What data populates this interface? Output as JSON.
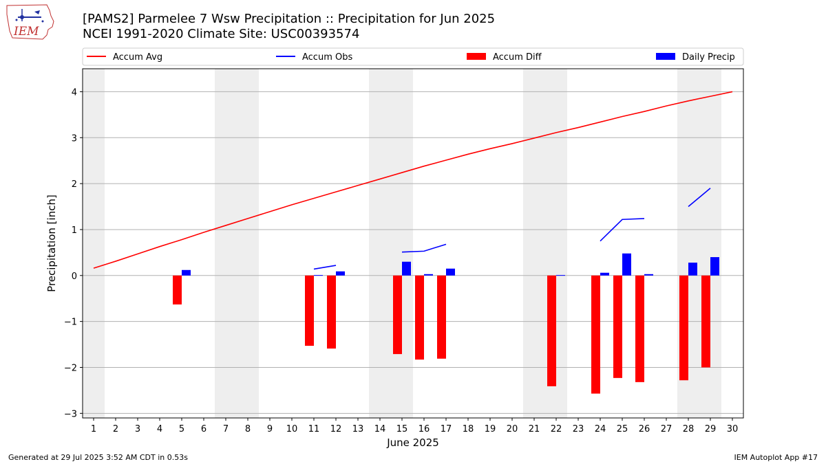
{
  "header": {
    "title": "[PAMS2] Parmelee 7 Wsw Precipitation :: Precipitation for Jun 2025",
    "subtitle": "NCEI 1991-2020 Climate Site: USC00393574",
    "logo_text": "IEM"
  },
  "footer": {
    "generated": "Generated at 29 Jul 2025 3:52 AM CDT in 0.53s",
    "app": "IEM Autoplot App #17"
  },
  "colors": {
    "avg": "#ff0000",
    "obs": "#0000ff",
    "diff": "#ff0000",
    "daily": "#0000ff",
    "weekend": "#eeeeee",
    "grid": "#b0b0b0"
  },
  "chart_data": {
    "type": "bar",
    "xlabel": "June 2025",
    "ylabel": "Precipitation [inch]",
    "xlim": [
      0.5,
      30.5
    ],
    "ylim": [
      -3.1,
      4.5
    ],
    "yticks": [
      -3,
      -2,
      -1,
      0,
      1,
      2,
      3,
      4
    ],
    "ytick_labels": [
      "−3",
      "−2",
      "−1",
      "0",
      "1",
      "2",
      "3",
      "4"
    ],
    "days": [
      1,
      2,
      3,
      4,
      5,
      6,
      7,
      8,
      9,
      10,
      11,
      12,
      13,
      14,
      15,
      16,
      17,
      18,
      19,
      20,
      21,
      22,
      23,
      24,
      25,
      26,
      27,
      28,
      29,
      30
    ],
    "weekend_days": [
      1,
      7,
      8,
      14,
      15,
      21,
      22,
      28,
      29
    ],
    "grid": true,
    "legend_position": "top",
    "legend": [
      {
        "label": "Accum Avg",
        "kind": "line",
        "color": "#ff0000"
      },
      {
        "label": "Accum Obs",
        "kind": "line",
        "color": "#0000ff"
      },
      {
        "label": "Accum Diff",
        "kind": "bar",
        "color": "#ff0000"
      },
      {
        "label": "Daily Precip",
        "kind": "bar",
        "color": "#0000ff"
      }
    ],
    "series": [
      {
        "name": "Accum Avg",
        "type": "line",
        "values": [
          0.16,
          0.31,
          0.47,
          0.63,
          0.78,
          0.94,
          1.09,
          1.24,
          1.39,
          1.54,
          1.68,
          1.82,
          1.96,
          2.1,
          2.24,
          2.38,
          2.51,
          2.64,
          2.76,
          2.87,
          2.99,
          3.11,
          3.22,
          3.34,
          3.46,
          3.57,
          3.69,
          3.8,
          3.9,
          4.0
        ]
      },
      {
        "name": "Accum Obs",
        "type": "line",
        "segments": [
          {
            "days": [
              11,
              12
            ],
            "values": [
              0.14,
              0.22
            ]
          },
          {
            "days": [
              15,
              16,
              17
            ],
            "values": [
              0.51,
              0.53,
              0.68
            ]
          },
          {
            "days": [
              24,
              25,
              26
            ],
            "values": [
              0.75,
              1.22,
              1.24
            ]
          },
          {
            "days": [
              28,
              29
            ],
            "values": [
              1.5,
              1.9
            ]
          }
        ]
      },
      {
        "name": "Accum Diff",
        "type": "bar",
        "values": {
          "5": -0.63,
          "11": -1.53,
          "12": -1.59,
          "15": -1.71,
          "16": -1.83,
          "17": -1.81,
          "22": -2.41,
          "24": -2.57,
          "25": -2.23,
          "26": -2.32,
          "28": -2.28,
          "29": -2.0
        }
      },
      {
        "name": "Daily Precip",
        "type": "bar",
        "values": {
          "5": 0.12,
          "11": 0.01,
          "12": 0.09,
          "15": 0.3,
          "16": 0.03,
          "17": 0.15,
          "22": 0.01,
          "24": 0.06,
          "25": 0.48,
          "26": 0.03,
          "28": 0.28,
          "29": 0.4
        }
      }
    ]
  }
}
